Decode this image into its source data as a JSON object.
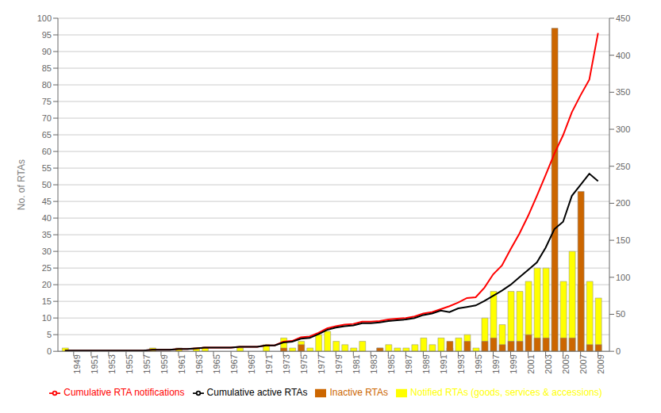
{
  "chart_data": {
    "type": "bar",
    "ylabel": "No. of RTAs",
    "x": [
      1948,
      1949,
      1950,
      1951,
      1952,
      1953,
      1954,
      1955,
      1956,
      1957,
      1958,
      1959,
      1960,
      1961,
      1962,
      1963,
      1964,
      1965,
      1966,
      1967,
      1968,
      1969,
      1970,
      1971,
      1972,
      1973,
      1974,
      1975,
      1976,
      1977,
      1978,
      1979,
      1980,
      1981,
      1982,
      1983,
      1984,
      1985,
      1986,
      1987,
      1988,
      1989,
      1990,
      1991,
      1992,
      1993,
      1994,
      1995,
      1996,
      1997,
      1998,
      1999,
      2000,
      2001,
      2002,
      2003,
      2004,
      2005,
      2006,
      2007,
      2008,
      2009
    ],
    "xlim": [
      1947.2,
      2010.3
    ],
    "xticks": [
      1949,
      1951,
      1953,
      1955,
      1957,
      1959,
      1961,
      1963,
      1965,
      1967,
      1969,
      1971,
      1973,
      1975,
      1977,
      1979,
      1981,
      1983,
      1985,
      1987,
      1989,
      1991,
      1993,
      1995,
      1997,
      1999,
      2001,
      2003,
      2005,
      2007,
      2009
    ],
    "ylim": [
      0,
      100
    ],
    "yticks": [
      0,
      5,
      10,
      15,
      20,
      25,
      30,
      35,
      40,
      45,
      50,
      55,
      60,
      65,
      70,
      75,
      80,
      85,
      90,
      95,
      100
    ],
    "y2lim": [
      0,
      450
    ],
    "y2ticks": [
      0,
      50,
      100,
      150,
      200,
      250,
      300,
      350,
      400,
      450
    ],
    "grid": true,
    "legend": "bottom",
    "series": [
      {
        "name": "Notified RTAs (goods, services & accessions)",
        "type": "bar",
        "color": "#ffff00",
        "values": [
          1,
          0,
          0,
          0,
          0,
          0,
          0,
          0,
          0,
          0,
          1,
          0,
          0,
          1,
          0,
          1,
          1,
          0,
          0,
          0,
          1,
          0,
          0,
          2,
          0,
          4,
          1,
          3,
          1,
          5,
          6,
          3,
          2,
          1,
          3,
          0,
          1,
          2,
          1,
          1,
          2,
          4,
          2,
          4,
          1,
          4,
          5,
          1,
          10,
          18,
          8,
          18,
          18,
          21,
          25,
          25,
          25,
          21,
          30,
          20,
          21,
          16
        ]
      },
      {
        "name": "Inactive RTAs",
        "type": "bar",
        "color": "#cc6600",
        "values": [
          0,
          0,
          0,
          0,
          0,
          0,
          0,
          0,
          0,
          0,
          0,
          0,
          0,
          0,
          0,
          0,
          0,
          0,
          0,
          0,
          0,
          0,
          0,
          0,
          0,
          1,
          0,
          2,
          0,
          0,
          0,
          0,
          0,
          0,
          0,
          0,
          1,
          0,
          0,
          0,
          0,
          0,
          0,
          0,
          3,
          0,
          3,
          0,
          3,
          4,
          2,
          3,
          3,
          5,
          4,
          4,
          97,
          4,
          4,
          48,
          2,
          2
        ]
      },
      {
        "name": "Cumulative RTA notifications",
        "type": "line",
        "axis": "y2",
        "color": "#ff0000",
        "values": [
          1,
          1,
          1,
          1,
          1,
          1,
          1,
          1,
          1,
          1,
          2,
          2,
          2,
          3,
          3,
          4,
          5,
          5,
          5,
          5,
          6,
          6,
          6,
          8,
          8,
          13,
          14,
          19,
          20,
          25,
          31,
          34,
          36,
          37,
          40,
          40,
          41,
          43,
          44,
          45,
          47,
          51,
          53,
          57,
          61,
          66,
          72,
          73,
          86,
          104,
          116,
          138,
          159,
          183,
          210,
          238,
          267,
          292,
          323,
          346,
          367,
          430
        ]
      },
      {
        "name": "Cumulative active RTAs",
        "type": "line",
        "axis": "y2",
        "color": "#000000",
        "values": [
          1,
          1,
          1,
          1,
          1,
          1,
          1,
          1,
          1,
          1,
          2,
          2,
          2,
          3,
          3,
          4,
          5,
          5,
          5,
          5,
          6,
          6,
          6,
          8,
          8,
          12,
          13,
          17,
          18,
          23,
          29,
          32,
          34,
          35,
          38,
          38,
          39,
          41,
          42,
          43,
          45,
          49,
          51,
          55,
          53,
          58,
          60,
          62,
          68,
          75,
          82,
          90,
          100,
          110,
          120,
          140,
          165,
          175,
          210,
          225,
          240,
          230
        ]
      }
    ]
  }
}
